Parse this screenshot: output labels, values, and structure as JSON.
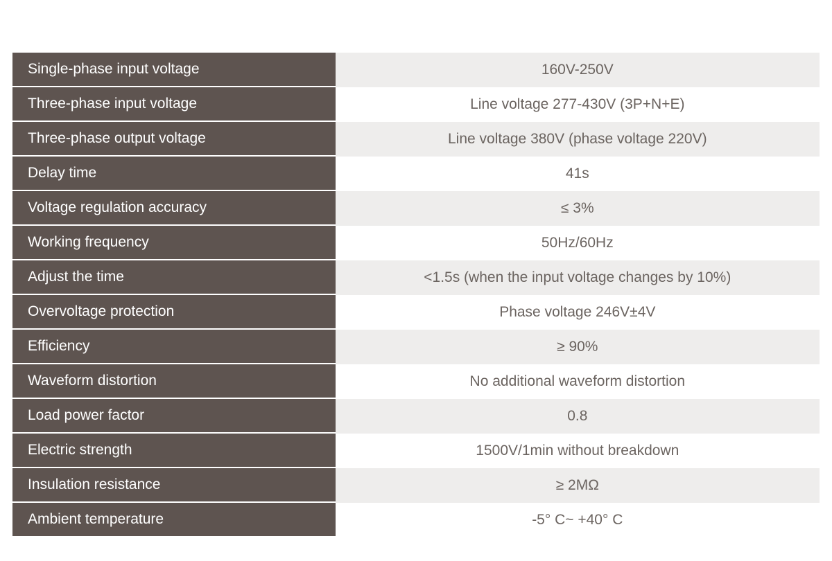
{
  "table": {
    "label_bg_color": "#5e5450",
    "label_text_color": "#ffffff",
    "value_text_color": "#6b6460",
    "value_bg_odd": "#eeedec",
    "value_bg_even": "#ffffff",
    "row_border_color": "#ffffff",
    "label_fontsize": 21,
    "value_fontsize": 21,
    "label_width_pct": 40,
    "value_width_pct": 60,
    "rows": [
      {
        "label": "Single-phase input voltage",
        "value": "160V-250V"
      },
      {
        "label": "Three-phase input voltage",
        "value": "Line voltage 277-430V (3P+N+E)"
      },
      {
        "label": "Three-phase output voltage",
        "value": "Line voltage 380V (phase voltage 220V)"
      },
      {
        "label": "Delay time",
        "value": "41s"
      },
      {
        "label": "Voltage regulation accuracy",
        "value": "≤ 3%"
      },
      {
        "label": "Working frequency",
        "value": "50Hz/60Hz"
      },
      {
        "label": "Adjust the time",
        "value": "<1.5s (when the input voltage changes by 10%)"
      },
      {
        "label": "Overvoltage protection",
        "value": "Phase voltage 246V±4V"
      },
      {
        "label": "Efficiency",
        "value": "≥ 90%"
      },
      {
        "label": "Waveform distortion",
        "value": "No additional waveform distortion"
      },
      {
        "label": "Load power factor",
        "value": "0.8"
      },
      {
        "label": "Electric strength",
        "value": "1500V/1min without breakdown"
      },
      {
        "label": "Insulation resistance",
        "value": "≥ 2MΩ"
      },
      {
        "label": "Ambient temperature",
        "value": "-5° C~ +40° C"
      }
    ]
  }
}
